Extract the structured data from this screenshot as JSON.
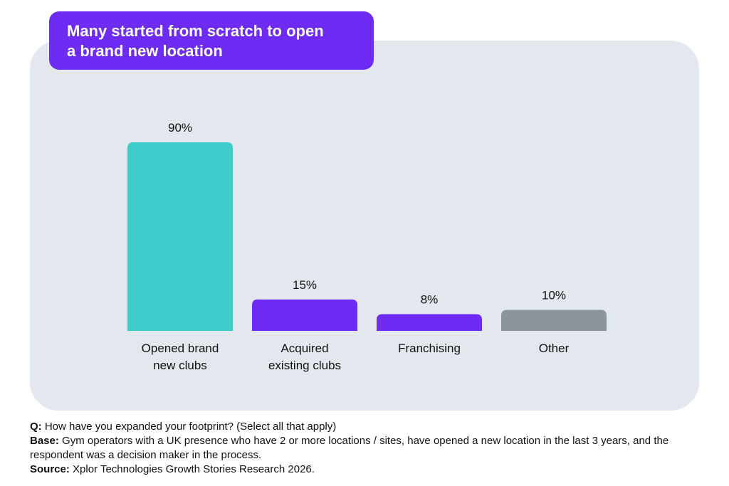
{
  "title": "Many started from scratch to open\na brand new location",
  "colors": {
    "panel": "#e3e8ee",
    "title_bg": "#6e2bf3",
    "teal": "#3ccdcb",
    "purple": "#6e2bf3",
    "grey": "#8c959c"
  },
  "chart_data": {
    "type": "bar",
    "title": "Many started from scratch to open a brand new location",
    "categories": [
      "Opened brand\nnew clubs",
      "Acquired\nexisting clubs",
      "Franchising",
      "Other"
    ],
    "values": [
      90,
      15,
      8,
      10
    ],
    "value_labels": [
      "90%",
      "15%",
      "8%",
      "10%"
    ],
    "bar_colors": [
      "#3ccdcb",
      "#6e2bf3",
      "#6e2bf3",
      "#8c959c"
    ],
    "xlabel": "",
    "ylabel": "",
    "ylim": [
      0,
      100
    ],
    "grid": false,
    "legend": "none"
  },
  "notes": {
    "q_label": "Q:",
    "q_text": "How have you expanded your footprint? (Select all that apply)",
    "base_label": "Base:",
    "base_text": "Gym operators with a UK presence who have 2 or more locations / sites, have opened a new location in the last 3 years, and the respondent was a decision maker in the process.",
    "source_label": "Source:",
    "source_text": "Xplor Technologies Growth Stories Research 2026."
  }
}
